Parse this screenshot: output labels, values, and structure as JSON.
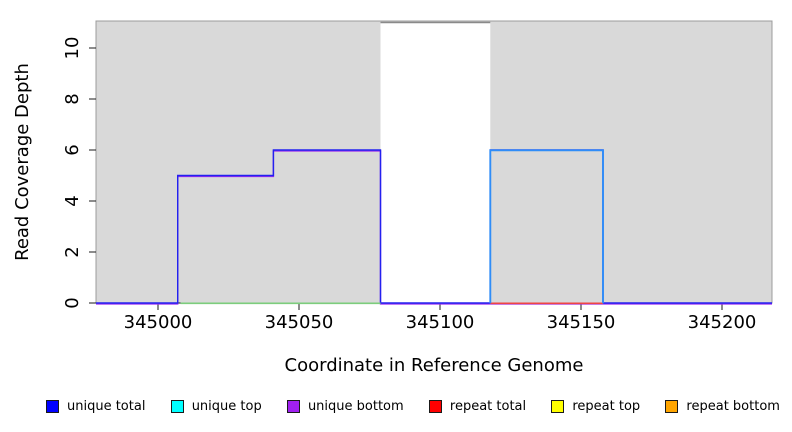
{
  "chart_data": {
    "type": "line",
    "title": "",
    "xlabel": "Coordinate in Reference Genome",
    "ylabel": "Read Coverage Depth",
    "xlim": [
      344978,
      345218
    ],
    "ylim": [
      0,
      11.06
    ],
    "x_ticks": [
      345000,
      345050,
      345100,
      345150,
      345200
    ],
    "x_tick_labels": [
      "345000",
      "345050",
      "345100",
      "345150",
      "345200"
    ],
    "y_ticks": [
      0,
      2,
      4,
      6,
      8,
      10
    ],
    "y_tick_labels": [
      "0",
      "2",
      "4",
      "6",
      "8",
      "10"
    ],
    "grid": false,
    "legend_position": "bottom",
    "plot_bg_color": "#d9d9d9",
    "plot_border_color": "#9c9c9c",
    "highlight_region": {
      "x_start": 345079,
      "x_end": 345118,
      "y_top": 11,
      "color": "#ffffff",
      "top_edge_color": "#8a8a8a"
    },
    "series": [
      {
        "name": "unique total",
        "color": "#0000ff",
        "segments": [
          [
            344978,
            345007,
            0
          ],
          [
            345007,
            345041,
            5
          ],
          [
            345041,
            345079,
            6
          ],
          [
            345079,
            345118,
            0
          ],
          [
            345118,
            345158,
            6
          ],
          [
            345158,
            345218,
            0
          ]
        ]
      },
      {
        "name": "unique top",
        "color": "#00ffff",
        "segments": [
          [
            344978,
            345118,
            0
          ],
          [
            345118,
            345158,
            6
          ],
          [
            345158,
            345218,
            0
          ]
        ]
      },
      {
        "name": "unique bottom",
        "color": "#a020f0",
        "segments": [
          [
            344978,
            345007,
            0
          ],
          [
            345007,
            345041,
            5
          ],
          [
            345041,
            345079,
            6
          ],
          [
            345079,
            345218,
            0
          ]
        ]
      },
      {
        "name": "repeat total",
        "color": "#ff0000",
        "segments": [
          [
            344978,
            345218,
            0
          ]
        ]
      },
      {
        "name": "repeat top",
        "color": "#ffff00",
        "segments": [
          [
            344978,
            345218,
            0
          ]
        ]
      },
      {
        "name": "repeat bottom",
        "color": "#ffa500",
        "segments": [
          [
            344978,
            345218,
            0
          ]
        ]
      }
    ],
    "rendered_marks": [
      {
        "name": "unique-bottom-line",
        "color": "#9a2bef",
        "points": [
          [
            344978,
            0
          ],
          [
            345007,
            0
          ],
          [
            345007,
            5
          ],
          [
            345041,
            5
          ],
          [
            345041,
            6
          ],
          [
            345079,
            6
          ],
          [
            345079,
            0
          ],
          [
            345218,
            0
          ]
        ]
      },
      {
        "name": "unique-total-line",
        "color": "#2222ef",
        "points": [
          [
            344978,
            0
          ],
          [
            345007,
            0
          ],
          [
            345007,
            5
          ],
          [
            345041,
            5
          ],
          [
            345041,
            6
          ],
          [
            345079,
            6
          ],
          [
            345079,
            0
          ],
          [
            345118,
            0
          ],
          [
            345118,
            6
          ],
          [
            345158,
            6
          ],
          [
            345158,
            0
          ],
          [
            345218,
            0
          ]
        ]
      },
      {
        "name": "green-overlap-line",
        "color": "#7ccd7c",
        "points": [
          [
            345008,
            0
          ],
          [
            345079,
            0
          ]
        ]
      },
      {
        "name": "repeat-total-line",
        "color": "#ee4545",
        "points": [
          [
            345118,
            0
          ],
          [
            345158,
            0
          ]
        ]
      },
      {
        "name": "unique-top-line",
        "color": "#2f8df8",
        "points": [
          [
            345118,
            0
          ],
          [
            345118,
            6
          ],
          [
            345158,
            6
          ],
          [
            345158,
            0
          ]
        ]
      }
    ]
  },
  "legend": {
    "items": [
      {
        "label": "unique total",
        "color": "#0000ff"
      },
      {
        "label": "unique top",
        "color": "#00ffff"
      },
      {
        "label": "unique bottom",
        "color": "#a020f0"
      },
      {
        "label": "repeat total",
        "color": "#ff0000"
      },
      {
        "label": "repeat top",
        "color": "#ffff00"
      },
      {
        "label": "repeat bottom",
        "color": "#ffa500"
      }
    ]
  }
}
